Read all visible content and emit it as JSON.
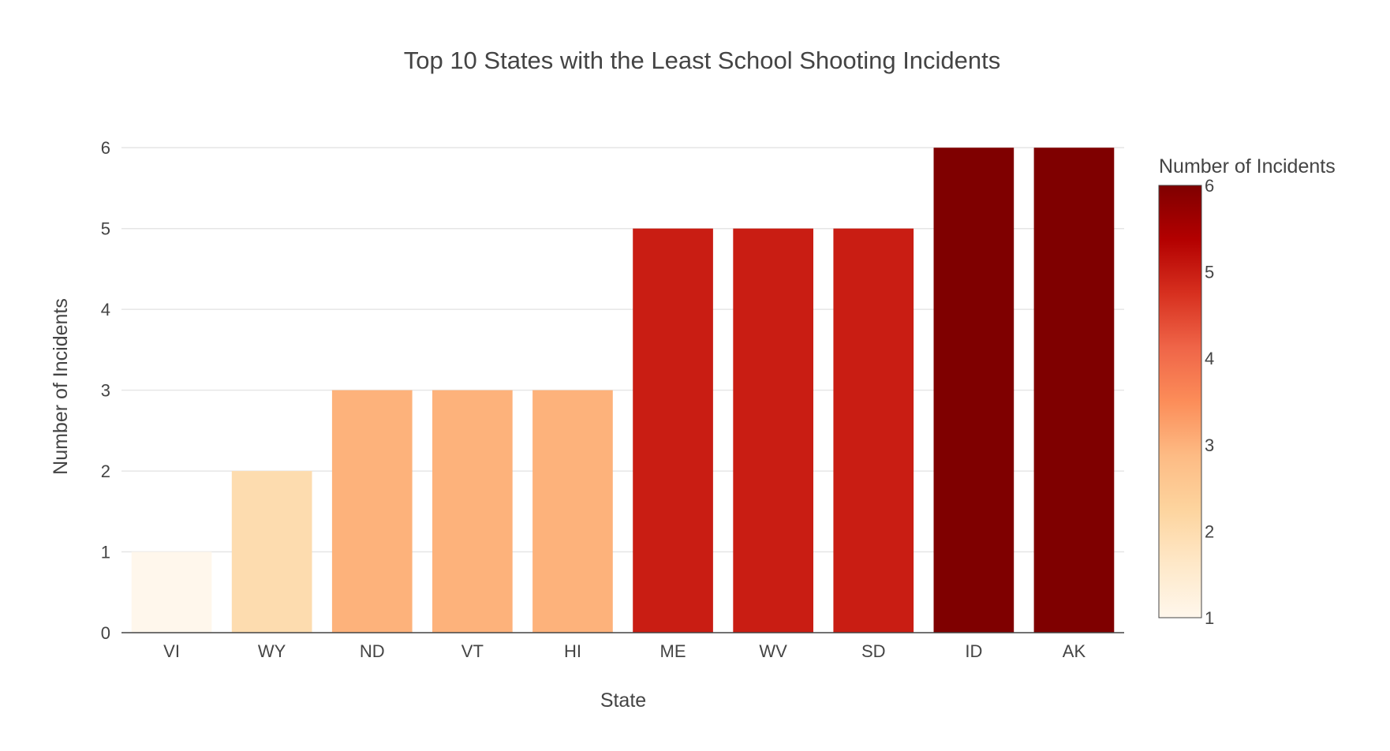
{
  "chart_data": {
    "type": "bar",
    "title": "Top 10 States with the Least School Shooting Incidents",
    "xlabel": "State",
    "ylabel": "Number of Incidents",
    "categories": [
      "VI",
      "WY",
      "ND",
      "VT",
      "HI",
      "ME",
      "WV",
      "SD",
      "ID",
      "AK"
    ],
    "values": [
      1,
      2,
      3,
      3,
      3,
      5,
      5,
      5,
      6,
      6
    ],
    "ylim": [
      0,
      6.5
    ],
    "yticks": [
      0,
      1,
      2,
      3,
      4,
      5,
      6
    ],
    "grid": true,
    "colorbar": {
      "title": "Number of Incidents",
      "range": [
        1,
        6
      ],
      "ticks": [
        1,
        2,
        3,
        4,
        5,
        6
      ],
      "colorscale": [
        "#fff7ec",
        "#fee8c8",
        "#fdd49e",
        "#fdbb84",
        "#fc8d59",
        "#ef6548",
        "#d7301f",
        "#b30000",
        "#7f0000"
      ]
    }
  }
}
